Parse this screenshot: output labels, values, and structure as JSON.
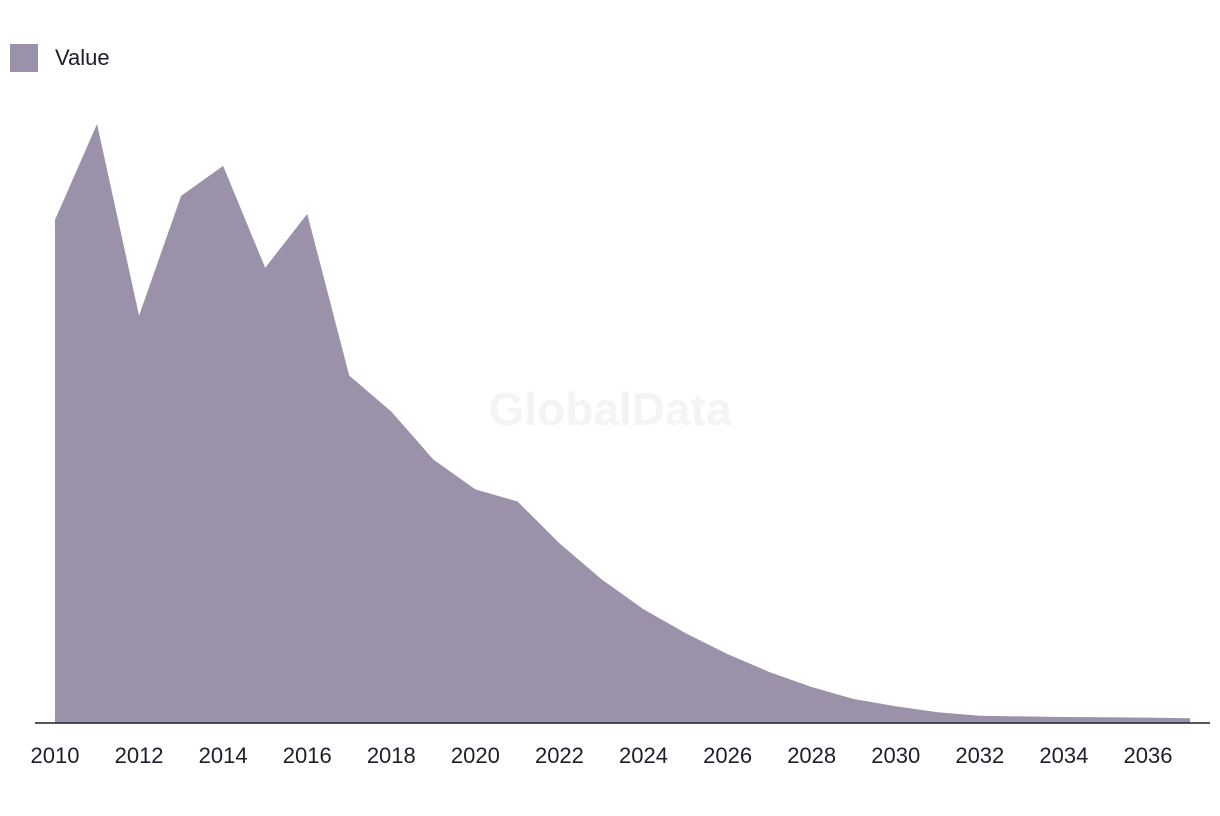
{
  "legend": {
    "label": "Value"
  },
  "watermark": "GlobalData",
  "colors": {
    "area": "#9b92aa",
    "axis": "#1e1e2a",
    "text": "#1e1e2a"
  },
  "chart_data": {
    "type": "area",
    "title": "",
    "xlabel": "",
    "ylabel": "",
    "grid": false,
    "legend_position": "top-left",
    "series": [
      {
        "name": "Value",
        "x": [
          2010,
          2011,
          2012,
          2013,
          2014,
          2015,
          2016,
          2017,
          2018,
          2019,
          2020,
          2021,
          2022,
          2023,
          2024,
          2025,
          2026,
          2027,
          2028,
          2029,
          2030,
          2031,
          2032,
          2033,
          2034,
          2035,
          2036,
          2037
        ],
        "values": [
          84,
          100,
          68,
          88,
          93,
          76,
          85,
          58,
          52,
          44,
          39,
          37,
          30,
          24,
          19,
          15,
          11.5,
          8.5,
          6,
          4,
          2.8,
          1.8,
          1.2,
          1.1,
          1.0,
          0.95,
          0.9,
          0.8
        ]
      }
    ],
    "xlim": [
      2010,
      2037
    ],
    "ylim": [
      0,
      100
    ],
    "xticks": [
      "2010",
      "2012",
      "2014",
      "2016",
      "2018",
      "2020",
      "2022",
      "2024",
      "2026",
      "2028",
      "2030",
      "2032",
      "2034",
      "2036"
    ]
  }
}
